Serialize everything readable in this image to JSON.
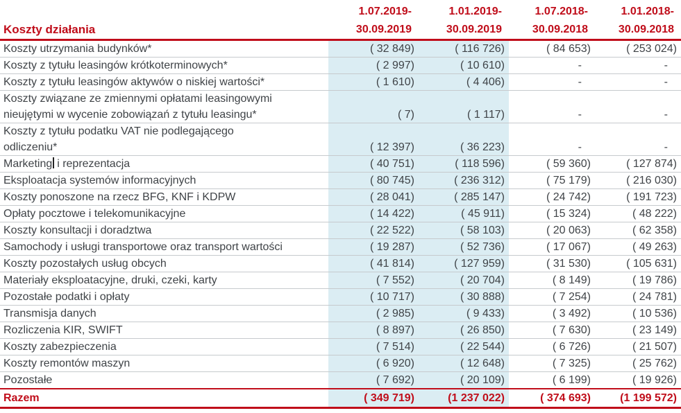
{
  "colors": {
    "accent_red": "#c00d1a",
    "highlight_band_blue": "#dbedf3",
    "row_separator_gray": "#c6cacd",
    "body_text": "#3f4347"
  },
  "header": {
    "title": "Koszty działania",
    "columns": [
      {
        "line1": "1.07.2019-",
        "line2": "30.09.2019"
      },
      {
        "line1": "1.01.2019-",
        "line2": "30.09.2019"
      },
      {
        "line1": "1.07.2018-",
        "line2": "30.09.2018"
      },
      {
        "line1": "1.01.2018-",
        "line2": "30.09.2018"
      }
    ]
  },
  "rows": [
    {
      "label": "Koszty utrzymania budynków*",
      "values": [
        "( 32 849)",
        "( 116 726)",
        "( 84 653)",
        "( 253 024)"
      ]
    },
    {
      "label": "Koszty z tytułu leasingów krótkoterminowych*",
      "values": [
        "( 2 997)",
        "( 10 610)",
        "-",
        "-"
      ]
    },
    {
      "label": "Koszty z tytułu leasingów aktywów o niskiej wartości*",
      "values": [
        "( 1 610)",
        "( 4 406)",
        "-",
        "-"
      ]
    },
    {
      "label": "Koszty związane ze zmiennymi opłatami leasingowymi\nnieujętymi w wycenie zobowiązań z tytułu leasingu*",
      "values": [
        "( 7)",
        "( 1 117)",
        "-",
        "-"
      ]
    },
    {
      "label": "Koszty z tytułu podatku VAT nie podlegającego\nodliczeniu*",
      "values": [
        "( 12 397)",
        "( 36 223)",
        "-",
        "-"
      ]
    },
    {
      "label": "Marketing i reprezentacja",
      "cursor_after": "Marketing",
      "values": [
        "( 40 751)",
        "( 118 596)",
        "( 59 360)",
        "( 127 874)"
      ]
    },
    {
      "label": "Eksploatacja systemów informacyjnych",
      "values": [
        "( 80 745)",
        "( 236 312)",
        "( 75 179)",
        "( 216 030)"
      ]
    },
    {
      "label": "Koszty ponoszone na rzecz BFG, KNF i KDPW",
      "values": [
        "( 28 041)",
        "( 285 147)",
        "( 24 742)",
        "( 191 723)"
      ]
    },
    {
      "label": "Opłaty pocztowe i telekomunikacyjne",
      "values": [
        "( 14 422)",
        "( 45 911)",
        "( 15 324)",
        "( 48 222)"
      ]
    },
    {
      "label": "Koszty konsultacji i doradztwa",
      "values": [
        "( 22 522)",
        "( 58 103)",
        "( 20 063)",
        "( 62 358)"
      ]
    },
    {
      "label": "Samochody i usługi transportowe oraz transport wartości",
      "values": [
        "( 19 287)",
        "( 52 736)",
        "( 17 067)",
        "( 49 263)"
      ]
    },
    {
      "label": "Koszty pozostałych usług obcych",
      "values": [
        "( 41 814)",
        "( 127 959)",
        "( 31 530)",
        "( 105 631)"
      ]
    },
    {
      "label": "Materiały eksploatacyjne, druki, czeki, karty",
      "values": [
        "( 7 552)",
        "( 20 704)",
        "( 8 149)",
        "( 19 786)"
      ]
    },
    {
      "label": "Pozostałe podatki i opłaty",
      "values": [
        "( 10 717)",
        "( 30 888)",
        "( 7 254)",
        "( 24 781)"
      ]
    },
    {
      "label": "Transmisja danych",
      "values": [
        "( 2 985)",
        "( 9 433)",
        "( 3 492)",
        "( 10 536)"
      ]
    },
    {
      "label": "Rozliczenia KIR, SWIFT",
      "values": [
        "( 8 897)",
        "( 26 850)",
        "( 7 630)",
        "( 23 149)"
      ]
    },
    {
      "label": "Koszty zabezpieczenia",
      "values": [
        "( 7 514)",
        "( 22 544)",
        "( 6 726)",
        "( 21 507)"
      ]
    },
    {
      "label": "Koszty remontów maszyn",
      "values": [
        "( 6 920)",
        "( 12 648)",
        "( 7 325)",
        "( 25 762)"
      ]
    },
    {
      "label": "Pozostałe",
      "values": [
        "( 7 692)",
        "( 20 109)",
        "( 6 199)",
        "( 19 926)"
      ]
    }
  ],
  "footer": {
    "label": "Razem",
    "values": [
      "( 349 719)",
      "(1 237 022)",
      "( 374 693)",
      "(1 199 572)"
    ]
  }
}
